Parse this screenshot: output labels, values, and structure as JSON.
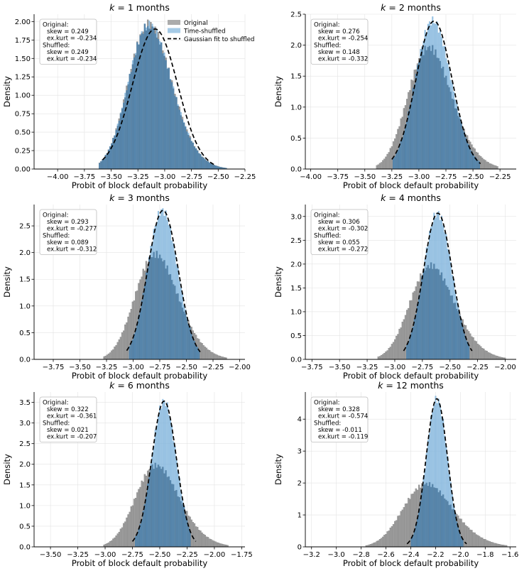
{
  "colors": {
    "original_fill": "#9e9e9e",
    "original_edge": "#6e6e6e",
    "shuffled_fill": "#7fb3dc",
    "overlap_fill": "#4f7fa6",
    "fit_line": "#000000"
  },
  "legend": {
    "placement": "top-right",
    "entries": [
      "Original",
      "Time-shuffled",
      "Gaussian fit to shuffled"
    ]
  },
  "chart_data": [
    {
      "type": "histogram",
      "title_prefix": "k",
      "title_suffix": " = 1 months",
      "xlabel": "Probit of block default probability",
      "ylabel": "Density",
      "xlim": [
        -4.22,
        -2.25
      ],
      "ylim": [
        0,
        2.1
      ],
      "xticks": [
        -4.0,
        -3.75,
        -3.5,
        -3.25,
        -3.0,
        -2.75,
        -2.5,
        -2.25
      ],
      "xtick_labels": [
        "−4.00",
        "−3.75",
        "−3.50",
        "−3.25",
        "−3.00",
        "−2.75",
        "−2.50",
        "−2.25"
      ],
      "yticks": [
        0,
        0.25,
        0.5,
        0.75,
        1.0,
        1.25,
        1.5,
        1.75,
        2.0
      ],
      "ytick_labels": [
        "0.00",
        "0.25",
        "0.50",
        "0.75",
        "1.00",
        "1.25",
        "1.50",
        "1.75",
        "2.00"
      ],
      "show_legend": true,
      "stats_lines": [
        "Original:",
        "skew = 0.249",
        "ex.kurt = -0.234",
        "Shuffled:",
        "skew = 0.249",
        "ex.kurt = -0.234"
      ],
      "original": {
        "mean": -3.12,
        "sd": 0.205,
        "skew": 0.249,
        "xmin": -3.62,
        "xmax": -2.42
      },
      "shuffled": {
        "mean": -3.12,
        "sd": 0.205,
        "skew": 0.249,
        "xmin": -3.62,
        "xmax": -2.42
      },
      "gaussian_fit": {
        "mean": -3.09,
        "sd": 0.21,
        "xmin": -3.58,
        "xmax": -2.52
      }
    },
    {
      "type": "histogram",
      "title_prefix": "k",
      "title_suffix": " = 2 months",
      "xlabel": "Probit of block default probability",
      "ylabel": "Density",
      "xlim": [
        -4.05,
        -2.1
      ],
      "ylim": [
        0,
        2.5
      ],
      "xticks": [
        -4.0,
        -3.75,
        -3.5,
        -3.25,
        -3.0,
        -2.75,
        -2.5,
        -2.25
      ],
      "xtick_labels": [
        "−4.00",
        "−3.75",
        "−3.50",
        "−3.25",
        "−3.00",
        "−2.75",
        "−2.50",
        "−2.25"
      ],
      "yticks": [
        0,
        0.5,
        1.0,
        1.5,
        2.0,
        2.5
      ],
      "ytick_labels": [
        "0.0",
        "0.5",
        "1.0",
        "1.5",
        "2.0",
        "2.5"
      ],
      "show_legend": false,
      "stats_lines": [
        "Original:",
        "skew = 0.276",
        "ex.kurt = -0.254",
        "Shuffled:",
        "skew = 0.148",
        "ex.kurt = -0.332"
      ],
      "original": {
        "mean": -2.88,
        "sd": 0.205,
        "skew": 0.276,
        "xmin": -3.4,
        "xmax": -2.27
      },
      "shuffled": {
        "mean": -2.86,
        "sd": 0.167,
        "skew": 0.148,
        "xmin": -3.24,
        "xmax": -2.44
      },
      "gaussian_fit": {
        "mean": -2.86,
        "sd": 0.167,
        "xmin": -3.25,
        "xmax": -2.43
      }
    },
    {
      "type": "histogram",
      "title_prefix": "k",
      "title_suffix": " = 3 months",
      "xlabel": "Probit of block default probability",
      "ylabel": "Density",
      "xlim": [
        -3.93,
        -1.95
      ],
      "ylim": [
        0,
        2.9
      ],
      "xticks": [
        -3.75,
        -3.5,
        -3.25,
        -3.0,
        -2.75,
        -2.5,
        -2.25,
        -2.0
      ],
      "xtick_labels": [
        "−3.75",
        "−3.50",
        "−3.25",
        "−3.00",
        "−2.75",
        "−2.50",
        "−2.25",
        "−2.00"
      ],
      "yticks": [
        0,
        0.5,
        1.0,
        1.5,
        2.0,
        2.5
      ],
      "ytick_labels": [
        "0.0",
        "0.5",
        "1.0",
        "1.5",
        "2.0",
        "2.5"
      ],
      "show_legend": false,
      "stats_lines": [
        "Original:",
        "skew = 0.293",
        "ex.kurt = -0.277",
        "Shuffled:",
        "skew = 0.089",
        "ex.kurt = -0.312"
      ],
      "original": {
        "mean": -2.76,
        "sd": 0.205,
        "skew": 0.293,
        "xmin": -3.28,
        "xmax": -2.12
      },
      "shuffled": {
        "mean": -2.72,
        "sd": 0.143,
        "skew": 0.089,
        "xmin": -3.04,
        "xmax": -2.38
      },
      "gaussian_fit": {
        "mean": -2.72,
        "sd": 0.143,
        "xmin": -3.06,
        "xmax": -2.37
      }
    },
    {
      "type": "histogram",
      "title_prefix": "k",
      "title_suffix": " = 4 months",
      "xlabel": "Probit of block default probability",
      "ylabel": "Density",
      "xlim": [
        -3.81,
        -1.9
      ],
      "ylim": [
        0,
        3.25
      ],
      "xticks": [
        -3.75,
        -3.5,
        -3.25,
        -3.0,
        -2.75,
        -2.5,
        -2.25,
        -2.0
      ],
      "xtick_labels": [
        "−3.75",
        "−3.50",
        "−3.25",
        "−3.00",
        "−2.75",
        "−2.50",
        "−2.25",
        "−2.00"
      ],
      "yticks": [
        0,
        0.5,
        1.0,
        1.5,
        2.0,
        2.5,
        3.0
      ],
      "ytick_labels": [
        "0.0",
        "0.5",
        "1.0",
        "1.5",
        "2.0",
        "2.5",
        "3.0"
      ],
      "show_legend": false,
      "stats_lines": [
        "Original:",
        "skew = 0.306",
        "ex.kurt = -0.302",
        "Shuffled:",
        "skew = 0.055",
        "ex.kurt = -0.272"
      ],
      "original": {
        "mean": -2.64,
        "sd": 0.205,
        "skew": 0.306,
        "xmin": -3.16,
        "xmax": -2.0
      },
      "shuffled": {
        "mean": -2.61,
        "sd": 0.13,
        "skew": 0.055,
        "xmin": -2.9,
        "xmax": -2.32
      },
      "gaussian_fit": {
        "mean": -2.61,
        "sd": 0.13,
        "xmin": -2.92,
        "xmax": -2.3
      }
    },
    {
      "type": "histogram",
      "title_prefix": "k",
      "title_suffix": " = 6 months",
      "xlabel": "Probit of block default probability",
      "ylabel": "Density",
      "xlim": [
        -3.65,
        -1.72
      ],
      "ylim": [
        0,
        3.75
      ],
      "xticks": [
        -3.5,
        -3.25,
        -3.0,
        -2.75,
        -2.5,
        -2.25,
        -2.0,
        -1.75
      ],
      "xtick_labels": [
        "−3.50",
        "−3.25",
        "−3.00",
        "−2.75",
        "−2.50",
        "−2.25",
        "−2.00",
        "−1.75"
      ],
      "yticks": [
        0,
        0.5,
        1.0,
        1.5,
        2.0,
        2.5,
        3.0,
        3.5
      ],
      "ytick_labels": [
        "0.0",
        "0.5",
        "1.0",
        "1.5",
        "2.0",
        "2.5",
        "3.0",
        "3.5"
      ],
      "show_legend": false,
      "stats_lines": [
        "Original:",
        "skew = 0.322",
        "ex.kurt = -0.361",
        "Shuffled:",
        "skew = 0.021",
        "ex.kurt = -0.207"
      ],
      "original": {
        "mean": -2.5,
        "sd": 0.205,
        "skew": 0.322,
        "xmin": -3.02,
        "xmax": -1.87
      },
      "shuffled": {
        "mean": -2.46,
        "sd": 0.113,
        "skew": 0.021,
        "xmin": -2.72,
        "xmax": -2.21
      },
      "gaussian_fit": {
        "mean": -2.46,
        "sd": 0.113,
        "xmin": -2.75,
        "xmax": -2.17
      }
    },
    {
      "type": "histogram",
      "title_prefix": "k",
      "title_suffix": " = 12 months",
      "xlabel": "Probit of block default probability",
      "ylabel": "Density",
      "xlim": [
        -3.25,
        -1.55
      ],
      "ylim": [
        0,
        4.85
      ],
      "xticks": [
        -3.2,
        -3.0,
        -2.8,
        -2.6,
        -2.4,
        -2.2,
        -2.0,
        -1.8,
        -1.6
      ],
      "xtick_labels": [
        "−3.2",
        "−3.0",
        "−2.8",
        "−2.6",
        "−2.4",
        "−2.2",
        "−2.0",
        "−1.8",
        "−1.6"
      ],
      "yticks": [
        0,
        1,
        2,
        3,
        4
      ],
      "ytick_labels": [
        "0",
        "1",
        "2",
        "3",
        "4"
      ],
      "show_legend": false,
      "stats_lines": [
        "Original:",
        "skew = 0.328",
        "ex.kurt = -0.574",
        "Shuffled:",
        "skew = -0.011",
        "ex.kurt = -0.119"
      ],
      "original": {
        "mean": -2.24,
        "sd": 0.205,
        "skew": 0.328,
        "xmin": -2.76,
        "xmax": -1.62
      },
      "shuffled": {
        "mean": -2.19,
        "sd": 0.086,
        "skew": -0.011,
        "xmin": -2.4,
        "xmax": -1.98
      },
      "gaussian_fit": {
        "mean": -2.19,
        "sd": 0.086,
        "xmin": -2.43,
        "xmax": -1.95
      }
    }
  ]
}
